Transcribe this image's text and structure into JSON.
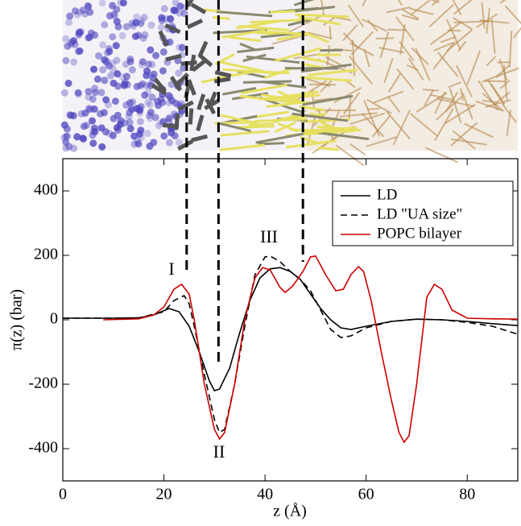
{
  "chart_data": {
    "type": "line",
    "xlabel": "z (Å)",
    "ylabel": "π(z) (bar)",
    "xlim": [
      0,
      90
    ],
    "ylim": [
      -500,
      500
    ],
    "xticks": [
      0,
      20,
      40,
      60,
      80
    ],
    "yticks": [
      -400,
      -200,
      0,
      200,
      400
    ],
    "legend": "upper right",
    "vlines": [
      24.5,
      30.8,
      47.5
    ],
    "annotations": [
      "I",
      "II",
      "III"
    ],
    "series": [
      {
        "name": "LD",
        "color": "#000000",
        "dash": "solid",
        "x": [
          0,
          5,
          10,
          15,
          18,
          21,
          23,
          25,
          27,
          29,
          30,
          31,
          33,
          35,
          37,
          39,
          41,
          43,
          45,
          47,
          49,
          51,
          53,
          55,
          57,
          60,
          65,
          70,
          75,
          80,
          85,
          90
        ],
        "values": [
          5,
          5,
          5,
          6,
          15,
          35,
          25,
          -20,
          -100,
          -190,
          -220,
          -215,
          -150,
          -40,
          60,
          130,
          158,
          162,
          150,
          125,
          80,
          35,
          0,
          -25,
          -30,
          -20,
          -5,
          2,
          0,
          -5,
          -12,
          -18
        ]
      },
      {
        "name": "LD \"UA size\"",
        "color": "#000000",
        "dash": "dashed",
        "x": [
          0,
          5,
          10,
          15,
          20,
          22,
          24,
          25,
          26,
          28,
          30,
          31,
          32,
          34,
          36,
          38,
          40,
          41,
          43,
          45,
          47,
          49,
          51,
          53,
          55,
          57,
          60,
          65,
          70,
          75,
          80,
          85,
          90
        ],
        "values": [
          5,
          5,
          5,
          6,
          25,
          60,
          75,
          50,
          -20,
          -170,
          -310,
          -350,
          -340,
          -200,
          -20,
          140,
          195,
          198,
          180,
          150,
          125,
          90,
          30,
          -30,
          -55,
          -50,
          -25,
          -5,
          2,
          0,
          -8,
          -20,
          -45
        ]
      },
      {
        "name": "POPC bilayer",
        "color": "#cc0000",
        "dash": "solid",
        "x": [
          8,
          15,
          18,
          20,
          22,
          23.5,
          25,
          26,
          28,
          30,
          31,
          32,
          34,
          36,
          38,
          39.5,
          41,
          43,
          44,
          45.5,
          47.5,
          49,
          50,
          52,
          54,
          55.5,
          57,
          58.5,
          59.5,
          61,
          63,
          65,
          66.5,
          67.5,
          68.5,
          70,
          72,
          73.5,
          75,
          77,
          80,
          85,
          90
        ],
        "values": [
          0,
          3,
          15,
          40,
          95,
          110,
          80,
          0,
          -200,
          -340,
          -370,
          -350,
          -200,
          0,
          130,
          162,
          155,
          100,
          85,
          105,
          150,
          195,
          198,
          140,
          90,
          95,
          140,
          165,
          150,
          60,
          -100,
          -250,
          -350,
          -380,
          -360,
          -200,
          70,
          110,
          95,
          30,
          5,
          3,
          2
        ]
      }
    ]
  }
}
